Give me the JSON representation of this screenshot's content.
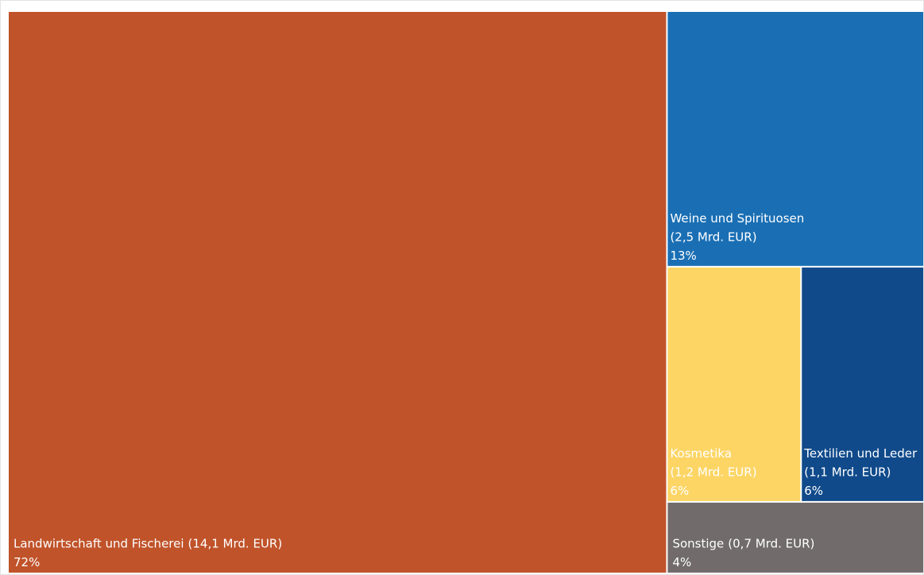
{
  "chart_data": {
    "type": "treemap",
    "categories": [
      "Landwirtschaft und Fischerei",
      "Weine und Spirituosen",
      "Kosmetika",
      "Textilien und Leder",
      "Sonstige"
    ],
    "values": [
      14.1,
      2.5,
      1.2,
      1.1,
      0.7
    ],
    "value_labels": [
      "(14,1 Mrd. EUR)",
      "(2,5 Mrd. EUR)",
      "(1,2 Mrd. EUR)",
      "(1,1 Mrd. EUR)",
      "(0,7 Mrd. EUR)"
    ],
    "shares": [
      72,
      13,
      6,
      6,
      4
    ],
    "share_labels": [
      "72%",
      "13%",
      "6%",
      "6%",
      "4%"
    ],
    "colors": [
      "#c0532a",
      "#1a6fb4",
      "#fcd565",
      "#104a8b",
      "#716b6b"
    ]
  }
}
